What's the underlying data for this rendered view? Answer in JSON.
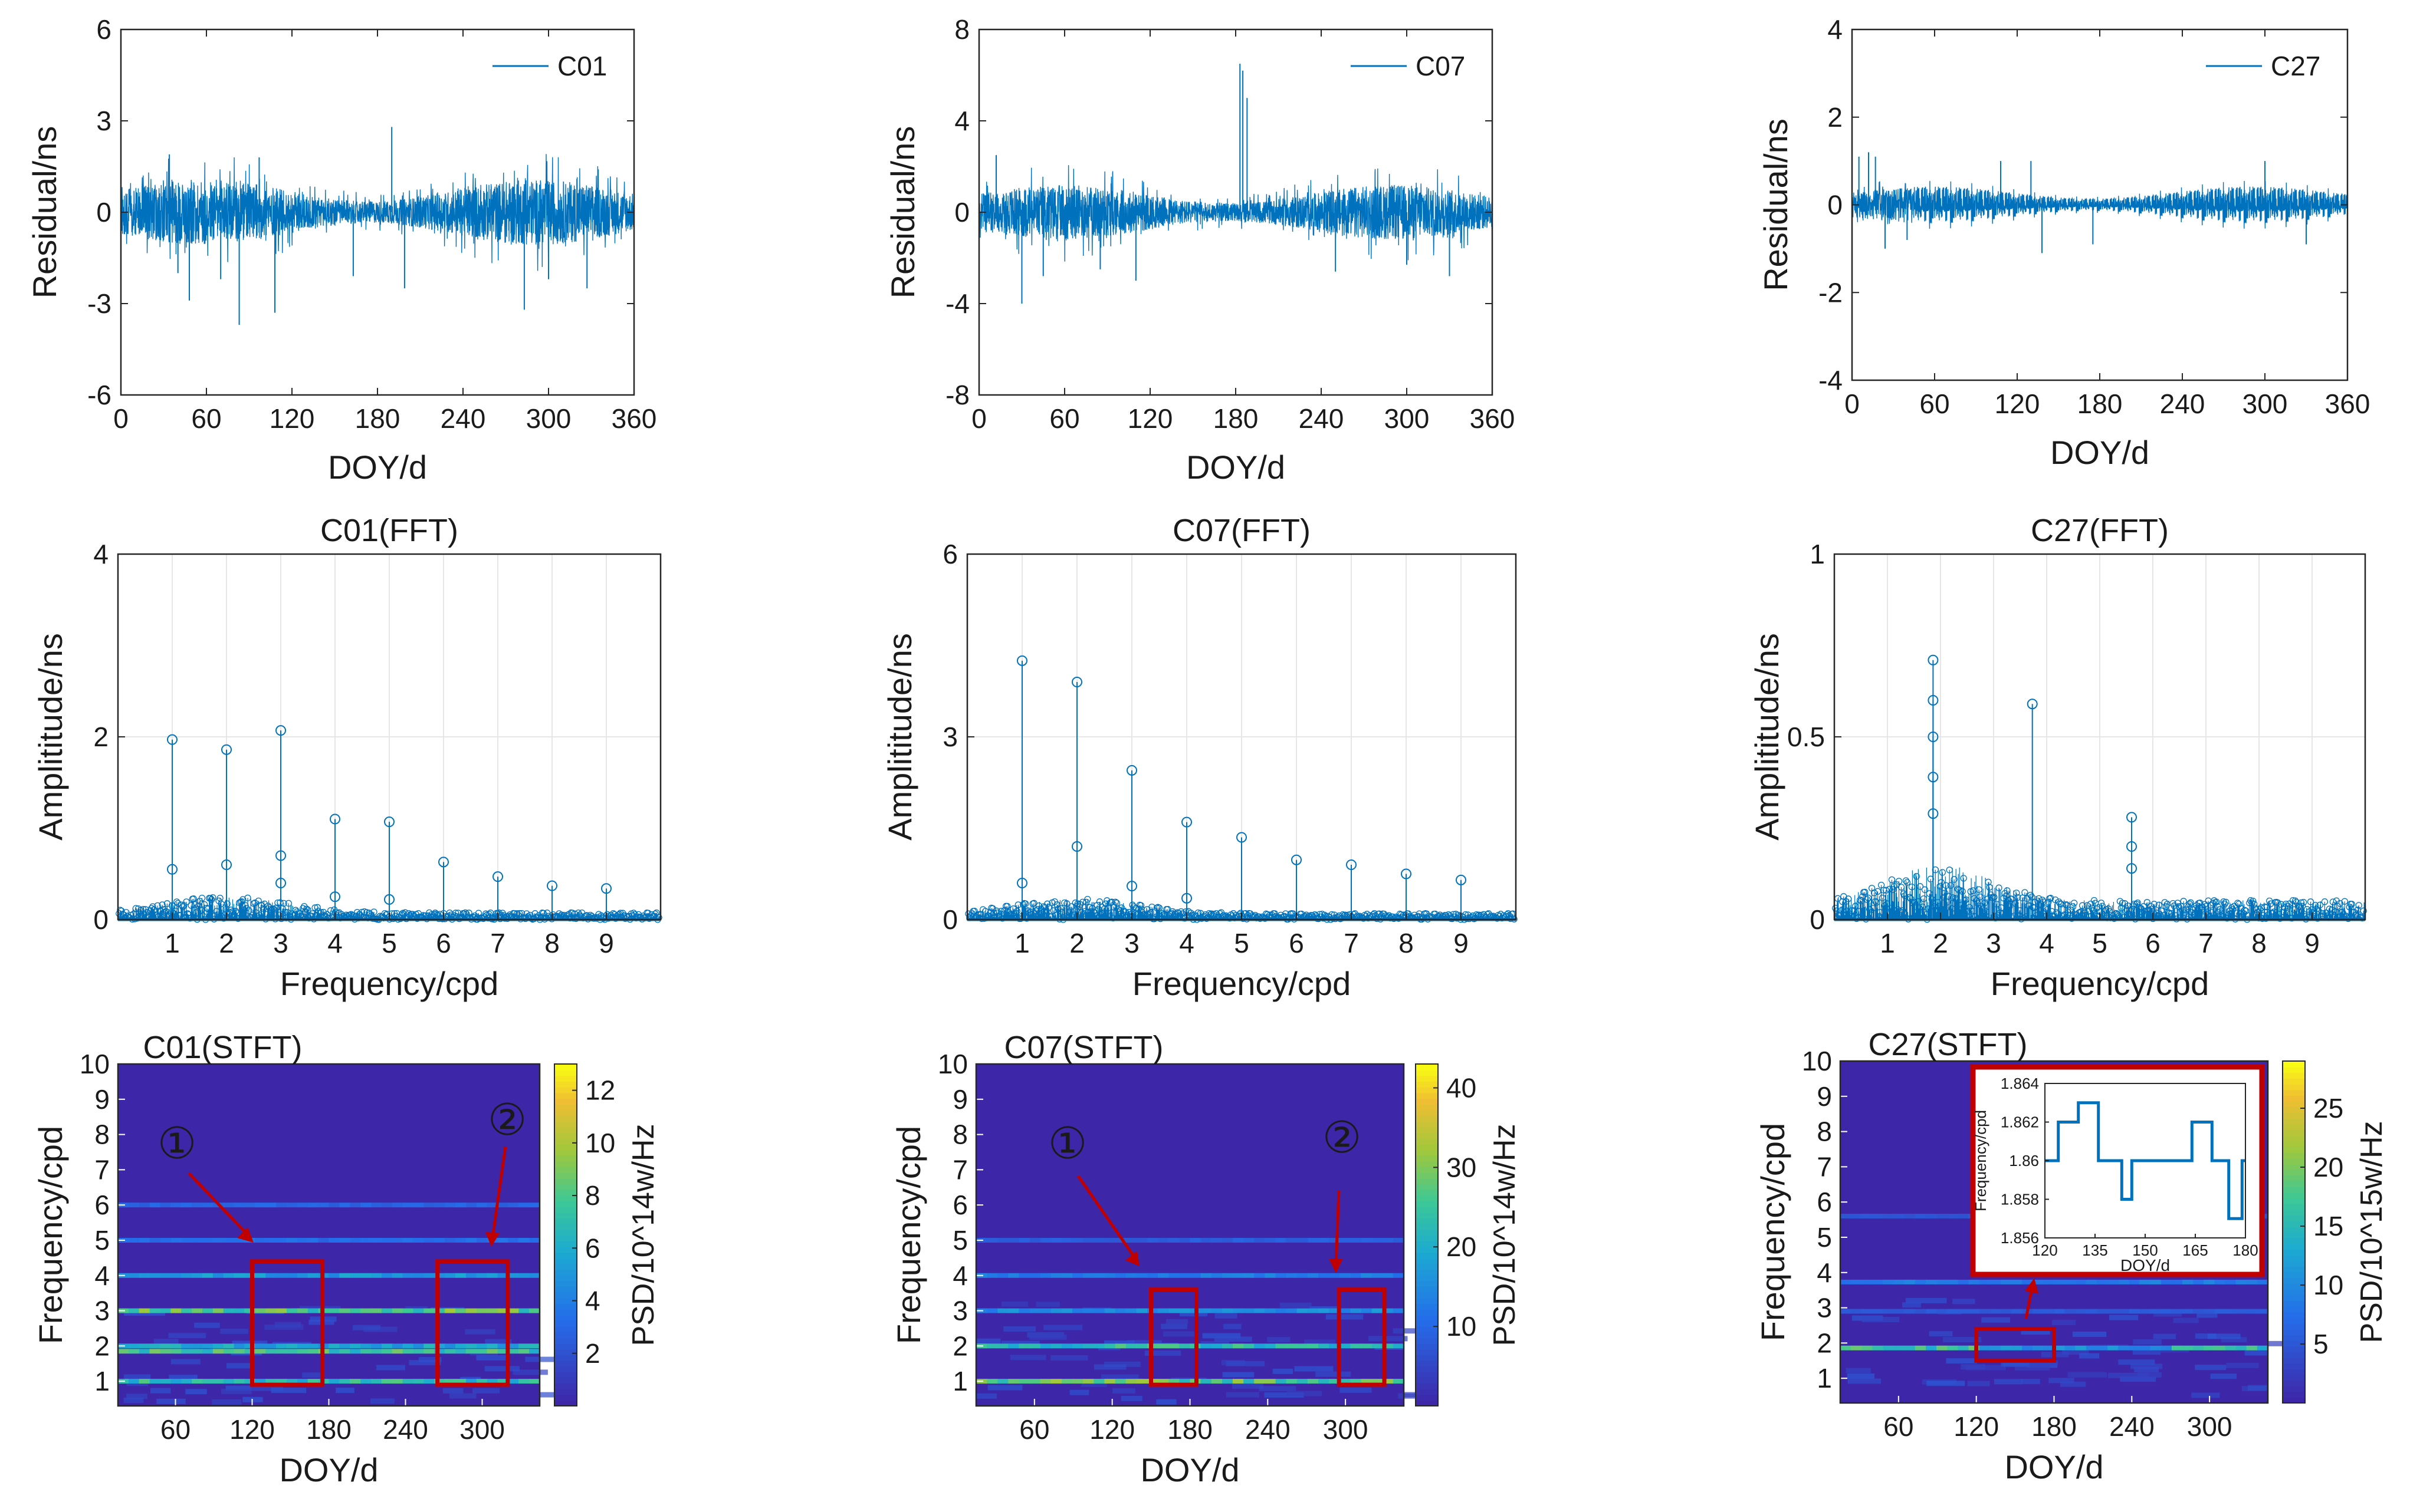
{
  "colors": {
    "line": "#0072BD",
    "frame": "#262626",
    "grid": "#e6e6e6",
    "box": "#C00000",
    "heat_bg": "#3E26A8"
  },
  "chart_data": [
    {
      "type": "line",
      "id": "res-c01",
      "legend": "C01",
      "xlabel": "DOY/d",
      "ylabel": "Residual/ns",
      "xlim": [
        0,
        360
      ],
      "ylim": [
        -6,
        6
      ],
      "xticks": [
        0,
        60,
        120,
        180,
        240,
        300,
        360
      ],
      "yticks": [
        -6,
        -3,
        0,
        3,
        6
      ],
      "amp": 0.9,
      "spikes": [
        [
          34,
          1.9
        ],
        [
          40,
          -2.0
        ],
        [
          48,
          -2.9
        ],
        [
          70,
          -2.2
        ],
        [
          83,
          -3.7
        ],
        [
          97,
          1.8
        ],
        [
          108,
          -3.3
        ],
        [
          163,
          -2.1
        ],
        [
          190,
          2.8
        ],
        [
          199,
          -2.5
        ],
        [
          283,
          -3.2
        ],
        [
          300,
          -2.2
        ],
        [
          327,
          -2.5
        ]
      ]
    },
    {
      "type": "line",
      "id": "res-c07",
      "legend": "C07",
      "xlabel": "DOY/d",
      "ylabel": "Residual/ns",
      "xlim": [
        0,
        360
      ],
      "ylim": [
        -8,
        8
      ],
      "xticks": [
        0,
        60,
        120,
        180,
        240,
        300,
        360
      ],
      "yticks": [
        -8,
        -4,
        0,
        4,
        8
      ],
      "amp": 1.0,
      "spikes": [
        [
          12,
          2.5
        ],
        [
          30,
          -4.0
        ],
        [
          45,
          -2.8
        ],
        [
          85,
          -2.5
        ],
        [
          110,
          -3.0
        ],
        [
          183,
          6.5
        ],
        [
          185,
          6.2
        ],
        [
          188,
          5.0
        ],
        [
          250,
          -2.6
        ],
        [
          300,
          -2.3
        ],
        [
          330,
          -2.8
        ]
      ]
    },
    {
      "type": "line",
      "id": "res-c27",
      "legend": "C27",
      "xlabel": "DOY/d",
      "ylabel": "Residual/ns",
      "xlim": [
        0,
        360
      ],
      "ylim": [
        -4,
        4
      ],
      "xticks": [
        0,
        60,
        120,
        180,
        240,
        300,
        360
      ],
      "yticks": [
        -4,
        -2,
        0,
        2,
        4
      ],
      "amp": 0.35,
      "spikes": [
        [
          5,
          1.1
        ],
        [
          12,
          1.2
        ],
        [
          17,
          1.1
        ],
        [
          24,
          -1.0
        ],
        [
          40,
          -0.8
        ],
        [
          108,
          1.0
        ],
        [
          130,
          1.0
        ],
        [
          138,
          -1.1
        ],
        [
          175,
          -0.9
        ],
        [
          300,
          1.0
        ],
        [
          330,
          -0.9
        ]
      ]
    },
    {
      "type": "stem",
      "id": "fft-c01",
      "title": "C01(FFT)",
      "xlabel": "Frequency/cpd",
      "ylabel": "Amplititude/ns",
      "xlim": [
        0,
        10
      ],
      "ylim": [
        0,
        4
      ],
      "xticks": [
        1,
        2,
        3,
        4,
        5,
        6,
        7,
        8,
        9
      ],
      "yticks": [
        0,
        2,
        4
      ],
      "peaks": [
        [
          1,
          1.97
        ],
        [
          1,
          0.55
        ],
        [
          2,
          1.86
        ],
        [
          2,
          0.6
        ],
        [
          3,
          2.07
        ],
        [
          3,
          0.7
        ],
        [
          3,
          0.4
        ],
        [
          4,
          1.1
        ],
        [
          4,
          0.25
        ],
        [
          5,
          1.07
        ],
        [
          5,
          0.22
        ],
        [
          6,
          0.63
        ],
        [
          7,
          0.47
        ],
        [
          8,
          0.37
        ],
        [
          9,
          0.34
        ]
      ],
      "floor": 0.3
    },
    {
      "type": "stem",
      "id": "fft-c07",
      "title": "C07(FFT)",
      "xlabel": "Frequency/cpd",
      "ylabel": "Amplititude/ns",
      "xlim": [
        0,
        10
      ],
      "ylim": [
        0,
        6
      ],
      "xticks": [
        1,
        2,
        3,
        4,
        5,
        6,
        7,
        8,
        9
      ],
      "yticks": [
        0,
        3,
        6
      ],
      "peaks": [
        [
          1,
          4.25
        ],
        [
          1,
          0.6
        ],
        [
          2,
          3.9
        ],
        [
          2,
          1.2
        ],
        [
          3,
          2.45
        ],
        [
          3,
          0.55
        ],
        [
          4,
          1.6
        ],
        [
          4,
          0.35
        ],
        [
          5,
          1.35
        ],
        [
          6,
          0.98
        ],
        [
          7,
          0.9
        ],
        [
          8,
          0.75
        ],
        [
          9,
          0.65
        ]
      ],
      "floor": 0.4
    },
    {
      "type": "stem",
      "id": "fft-c27",
      "title": "C27(FFT)",
      "xlabel": "Frequency/cpd",
      "ylabel": "Amplititude/ns",
      "xlim": [
        0,
        10
      ],
      "ylim": [
        0,
        1
      ],
      "xticks": [
        1,
        2,
        3,
        4,
        5,
        6,
        7,
        8,
        9
      ],
      "yticks": [
        0,
        0.5,
        1
      ],
      "peaks": [
        [
          1.86,
          0.71
        ],
        [
          1.86,
          0.6
        ],
        [
          1.86,
          0.5
        ],
        [
          1.86,
          0.39
        ],
        [
          1.86,
          0.29
        ],
        [
          3.73,
          0.59
        ],
        [
          5.6,
          0.28
        ],
        [
          5.6,
          0.2
        ],
        [
          5.6,
          0.14
        ]
      ],
      "floor": 0.15
    },
    {
      "type": "heatmap",
      "id": "stft-c01",
      "title": "C01(STFT)",
      "xlabel": "DOY/d",
      "ylabel": "Frequency/cpd",
      "cbar_label": "PSD/10^14w/Hz",
      "xticks": [
        60,
        120,
        180,
        240,
        300
      ],
      "yticks": [
        1,
        2,
        3,
        4,
        5,
        6,
        7,
        8,
        9,
        10
      ],
      "xlim": [
        15,
        345
      ],
      "ylim": [
        0.3,
        10
      ],
      "cbar_ticks": [
        2,
        4,
        6,
        8,
        10,
        12
      ],
      "cbar_max": 13,
      "lines": [
        [
          1,
          0.45
        ],
        [
          1.85,
          0.5
        ],
        [
          2,
          0.35
        ],
        [
          3,
          0.55
        ],
        [
          4,
          0.3
        ],
        [
          5,
          0.15
        ],
        [
          6,
          0.12
        ]
      ],
      "boxes": [
        {
          "x": [
            120,
            175
          ],
          "y": [
            0.9,
            4.4
          ],
          "label": "①"
        },
        {
          "x": [
            265,
            320
          ],
          "y": [
            0.9,
            4.4
          ],
          "label": "②"
        }
      ]
    },
    {
      "type": "heatmap",
      "id": "stft-c07",
      "title": "C07(STFT)",
      "xlabel": "DOY/d",
      "ylabel": "Frequency/cpd",
      "cbar_label": "PSD/10^14w/Hz",
      "xticks": [
        60,
        120,
        180,
        240,
        300
      ],
      "yticks": [
        1,
        2,
        3,
        4,
        5,
        6,
        7,
        8,
        9,
        10
      ],
      "xlim": [
        15,
        345
      ],
      "ylim": [
        0.3,
        10
      ],
      "cbar_ticks": [
        10,
        20,
        30,
        40
      ],
      "cbar_max": 43,
      "lines": [
        [
          1,
          0.55
        ],
        [
          2,
          0.45
        ],
        [
          3,
          0.25
        ],
        [
          4,
          0.2
        ],
        [
          5,
          0.1
        ]
      ],
      "boxes": [
        {
          "x": [
            150,
            185
          ],
          "y": [
            0.9,
            3.6
          ],
          "label": "①"
        },
        {
          "x": [
            295,
            330
          ],
          "y": [
            0.9,
            3.6
          ],
          "label": "②"
        }
      ]
    },
    {
      "type": "heatmap",
      "id": "stft-c27",
      "title": "C27(STFT)",
      "xlabel": "DOY/d",
      "ylabel": "Frequency/cpd",
      "cbar_label": "PSD/10^15w/Hz",
      "xticks": [
        60,
        120,
        180,
        240,
        300
      ],
      "yticks": [
        1,
        2,
        3,
        4,
        5,
        6,
        7,
        8,
        9,
        10
      ],
      "xlim": [
        15,
        345
      ],
      "ylim": [
        0.3,
        10
      ],
      "cbar_ticks": [
        5,
        10,
        15,
        20,
        25
      ],
      "cbar_max": 29,
      "lines": [
        [
          1.86,
          0.5
        ],
        [
          3.73,
          0.2
        ],
        [
          2.9,
          0.08
        ],
        [
          5.6,
          0.06
        ]
      ],
      "boxes": [
        {
          "x": [
            120,
            180
          ],
          "y": [
            1.5,
            2.4
          ],
          "label": ""
        }
      ],
      "inset": {
        "xlabel": "DOY/d",
        "ylabel": "Frequency/cpd",
        "xlim": [
          120,
          180
        ],
        "ylim": [
          1.856,
          1.864
        ],
        "xticks": [
          120,
          135,
          150,
          165,
          180
        ],
        "yticks": [
          1.856,
          1.858,
          1.86,
          1.862,
          1.864
        ],
        "x": [
          120,
          124,
          124,
          130,
          130,
          136,
          136,
          143,
          143,
          146,
          146,
          164,
          164,
          170,
          170,
          175,
          175,
          179,
          179,
          180
        ],
        "y": [
          1.86,
          1.86,
          1.862,
          1.862,
          1.863,
          1.863,
          1.86,
          1.86,
          1.858,
          1.858,
          1.86,
          1.86,
          1.862,
          1.862,
          1.86,
          1.86,
          1.857,
          1.857,
          1.86,
          1.86
        ]
      }
    }
  ]
}
